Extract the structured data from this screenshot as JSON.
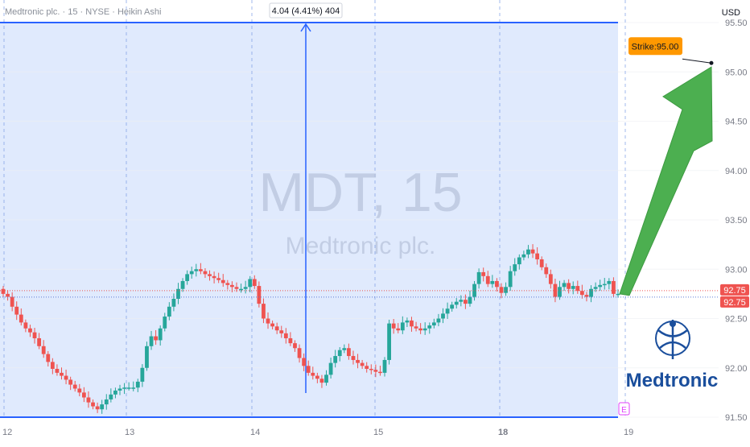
{
  "header": {
    "symbol_line": "Medtronic plc. · 15 · NYSE · Heikin Ashi",
    "currency": "USD"
  },
  "watermark": {
    "ticker": "MDT, 15",
    "company": "Medtronic plc."
  },
  "measure": {
    "label": "4.04 (4.41%) 404"
  },
  "strike": {
    "label": "Strike:95.00"
  },
  "price_tags": [
    "92.75",
    "92.75"
  ],
  "earnings_marker": "E",
  "logo": {
    "text": "Medtronic"
  },
  "colors": {
    "up": "#26a69a",
    "down": "#ef5350",
    "range_fill": "#dbe6fd",
    "range_line": "#2962ff",
    "arrow": "#4caf50",
    "strike_bg": "#ff9800",
    "tag_bg": "#ef5350",
    "logo": "#1a4e9c"
  },
  "chart_data": {
    "type": "candlestick",
    "ylim": [
      91.5,
      95.5
    ],
    "y_ticks": [
      "91.50",
      "92.00",
      "92.50",
      "93.00",
      "93.50",
      "94.00",
      "94.50",
      "95.00",
      "95.50"
    ],
    "x_ticks": [
      "12",
      "13",
      "14",
      "15",
      "18",
      "19"
    ],
    "range_box": {
      "low": 91.5,
      "high": 95.5
    },
    "last_price": 92.75,
    "strike_price": 95.0,
    "series": [
      {
        "name": "MDT",
        "close": [
          92.75,
          92.72,
          92.62,
          92.54,
          92.46,
          92.4,
          92.36,
          92.3,
          92.22,
          92.14,
          92.06,
          91.99,
          91.95,
          91.92,
          91.88,
          91.83,
          91.79,
          91.75,
          91.7,
          91.65,
          91.61,
          91.58,
          91.63,
          91.68,
          91.73,
          91.77,
          91.79,
          91.8,
          91.8,
          91.8,
          91.86,
          92.0,
          92.22,
          92.32,
          92.28,
          92.4,
          92.52,
          92.62,
          92.7,
          92.8,
          92.88,
          92.95,
          92.98,
          93.0,
          92.98,
          92.95,
          92.93,
          92.91,
          92.89,
          92.86,
          92.84,
          92.82,
          92.8,
          92.8,
          92.82,
          92.9,
          92.83,
          92.65,
          92.5,
          92.45,
          92.42,
          92.38,
          92.35,
          92.3,
          92.25,
          92.2,
          92.1,
          92.02,
          91.95,
          91.92,
          91.89,
          91.85,
          91.93,
          92.05,
          92.12,
          92.18,
          92.2,
          92.12,
          92.08,
          92.05,
          92.02,
          91.99,
          91.98,
          91.96,
          91.95,
          92.08,
          92.45,
          92.4,
          92.38,
          92.46,
          92.48,
          92.42,
          92.4,
          92.38,
          92.4,
          92.43,
          92.46,
          92.5,
          92.55,
          92.6,
          92.64,
          92.67,
          92.69,
          92.65,
          92.72,
          92.85,
          92.97,
          92.93,
          92.85,
          92.88,
          92.82,
          92.76,
          92.82,
          92.98,
          93.05,
          93.12,
          93.15,
          93.2,
          93.16,
          93.1,
          93.02,
          92.95,
          92.85,
          92.72,
          92.82,
          92.86,
          92.8,
          92.83,
          92.78,
          92.74,
          92.72,
          92.8,
          92.82,
          92.84,
          92.85,
          92.88,
          92.75,
          92.75
        ]
      }
    ]
  }
}
